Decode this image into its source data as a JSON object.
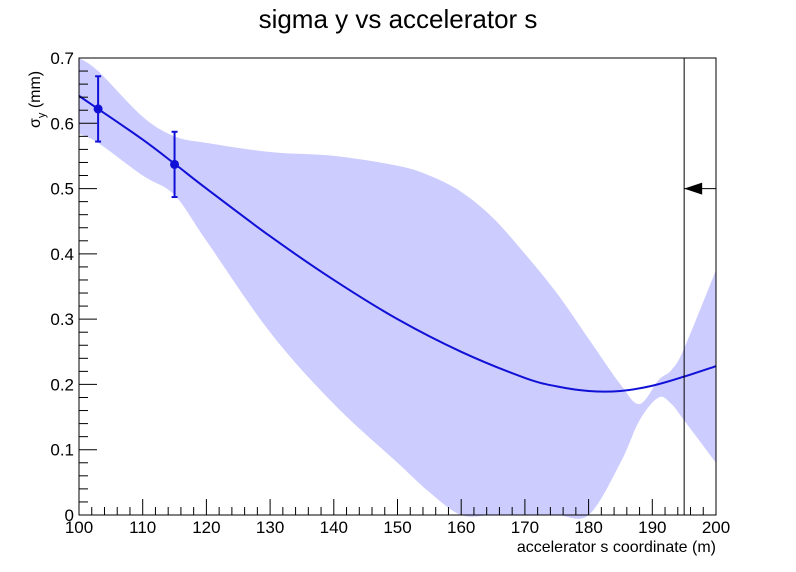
{
  "chart_data": {
    "type": "line",
    "title": "sigma y vs accelerator s",
    "xlabel": "accelerator s coordinate (m)",
    "ylabel": {
      "symbol": "σ",
      "subscript": "y",
      "unit": "(mm)"
    },
    "xlim": [
      100,
      200
    ],
    "ylim": [
      0,
      0.7
    ],
    "x_ticks": [
      100,
      110,
      120,
      130,
      140,
      150,
      160,
      170,
      180,
      190,
      200
    ],
    "y_ticks": [
      0,
      0.1,
      0.2,
      0.3,
      0.4,
      0.5,
      0.6,
      0.7
    ],
    "x_tick_labels": [
      "100",
      "110",
      "120",
      "130",
      "140",
      "150",
      "160",
      "170",
      "180",
      "190",
      "200"
    ],
    "y_tick_labels": [
      "0",
      "0.1",
      "0.2",
      "0.3",
      "0.4",
      "0.5",
      "0.6",
      "0.7"
    ],
    "grid": false,
    "colors": {
      "line": "#1010d6",
      "band": "#ccccff",
      "marker": "#1010d6",
      "frame": "#000000"
    },
    "fit_curve": {
      "x": [
        100,
        103,
        110,
        115,
        120,
        130,
        140,
        150,
        160,
        170,
        175,
        180,
        185,
        190,
        195,
        200
      ],
      "y": [
        0.642,
        0.622,
        0.575,
        0.538,
        0.5,
        0.427,
        0.36,
        0.3,
        0.25,
        0.21,
        0.197,
        0.19,
        0.19,
        0.198,
        0.212,
        0.228
      ]
    },
    "error_band": {
      "x": [
        100,
        103,
        110,
        115,
        120,
        130,
        140,
        150,
        155,
        160,
        165,
        170,
        175,
        180,
        185,
        188,
        191,
        193,
        195,
        200
      ],
      "upper": [
        0.7,
        0.68,
        0.61,
        0.58,
        0.57,
        0.556,
        0.55,
        0.535,
        0.52,
        0.495,
        0.455,
        0.4,
        0.34,
        0.27,
        0.2,
        0.17,
        0.207,
        0.222,
        0.255,
        0.375
      ],
      "lower": [
        0.584,
        0.57,
        0.52,
        0.49,
        0.42,
        0.28,
        0.17,
        0.08,
        0.035,
        0.0,
        0.0,
        0.0,
        0.0,
        0.0,
        0.08,
        0.145,
        0.18,
        0.17,
        0.145,
        0.08
      ]
    },
    "data_points": [
      {
        "x": 103,
        "y": 0.622,
        "yerr": 0.05
      },
      {
        "x": 115,
        "y": 0.537,
        "yerr": 0.05
      }
    ],
    "marker_line": {
      "x": 195,
      "arrow_y": 0.5,
      "arrow_direction": "left"
    }
  }
}
